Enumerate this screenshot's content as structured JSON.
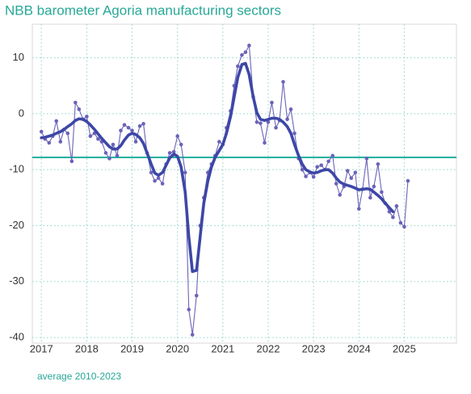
{
  "chart_data": {
    "type": "line",
    "title": "NBB barometer Agoria manufacturing sectors",
    "x": [
      2017,
      2017.08,
      2017.17,
      2017.25,
      2017.33,
      2017.42,
      2017.5,
      2017.58,
      2017.67,
      2017.75,
      2017.83,
      2017.92,
      2018,
      2018.08,
      2018.17,
      2018.25,
      2018.33,
      2018.42,
      2018.5,
      2018.58,
      2018.67,
      2018.75,
      2018.83,
      2018.92,
      2019,
      2019.08,
      2019.17,
      2019.25,
      2019.33,
      2019.42,
      2019.5,
      2019.58,
      2019.67,
      2019.75,
      2019.83,
      2019.92,
      2020,
      2020.08,
      2020.17,
      2020.25,
      2020.33,
      2020.42,
      2020.5,
      2020.58,
      2020.67,
      2020.75,
      2020.83,
      2020.92,
      2021,
      2021.08,
      2021.17,
      2021.25,
      2021.33,
      2021.42,
      2021.5,
      2021.58,
      2021.67,
      2021.75,
      2021.83,
      2021.92,
      2022,
      2022.08,
      2022.17,
      2022.25,
      2022.33,
      2022.42,
      2022.5,
      2022.58,
      2022.67,
      2022.75,
      2022.83,
      2022.92,
      2023,
      2023.08,
      2023.17,
      2023.25,
      2023.33,
      2023.42,
      2023.5,
      2023.58,
      2023.67,
      2023.75,
      2023.83,
      2023.92,
      2024,
      2024.08,
      2024.17,
      2024.25,
      2024.33,
      2024.42,
      2024.5,
      2024.58,
      2024.67,
      2024.75,
      2024.83,
      2024.92,
      2025,
      2025.08
    ],
    "series": [
      {
        "color": "#6b63b8",
        "style": "thin-with-markers",
        "values": [
          -3.2,
          -4.5,
          -5.2,
          -4.0,
          -1.3,
          -5.0,
          -2.8,
          -3.5,
          -8.5,
          2.0,
          0.8,
          -1.0,
          -0.5,
          -4.0,
          -3.5,
          -4.5,
          -5.0,
          -7.0,
          -8.0,
          -5.5,
          -7.5,
          -3.0,
          -2.0,
          -2.5,
          -3.0,
          -5.0,
          -2.2,
          -1.8,
          -7.0,
          -10.5,
          -12.0,
          -11.5,
          -12.5,
          -9.0,
          -7.0,
          -6.8,
          -4.0,
          -5.5,
          -10.5,
          -35.0,
          -39.5,
          -32.5,
          -20.0,
          -15.0,
          -10.5,
          -9.0,
          -7.5,
          -5.0,
          -5.5,
          -2.5,
          0.5,
          5.0,
          8.5,
          10.5,
          11.0,
          12.2,
          3.0,
          -1.5,
          -1.7,
          -5.2,
          -1.5,
          2.0,
          -2.5,
          -1.2,
          5.7,
          -1.0,
          0.8,
          -3.5,
          -8.0,
          -10.0,
          -11.2,
          -10.5,
          -11.3,
          -9.5,
          -9.2,
          -10.0,
          -8.5,
          -7.5,
          -12.5,
          -14.5,
          -13.0,
          -10.2,
          -11.5,
          -10.5,
          -17.0,
          -13.5,
          -8.0,
          -15.0,
          -13.0,
          -9.0,
          -14.0,
          -16.0,
          -17.5,
          -18.5,
          -16.5,
          -19.5,
          -20.2,
          -12.0
        ]
      },
      {
        "color": "#3d47a6",
        "style": "thick",
        "values": [
          -4.3,
          -4.2,
          -4.0,
          -3.8,
          -3.5,
          -3.2,
          -2.8,
          -2.3,
          -1.8,
          -1.2,
          -0.9,
          -1.0,
          -1.4,
          -2.0,
          -2.8,
          -3.6,
          -4.4,
          -5.2,
          -5.9,
          -6.3,
          -6.3,
          -5.7,
          -4.7,
          -3.8,
          -3.5,
          -3.7,
          -4.3,
          -5.3,
          -7.0,
          -9.0,
          -10.6,
          -11.0,
          -10.5,
          -9.2,
          -7.9,
          -7.2,
          -7.6,
          -9.5,
          -14.0,
          -22.0,
          -28.2,
          -28.0,
          -22.0,
          -16.0,
          -12.0,
          -9.5,
          -7.8,
          -6.6,
          -5.5,
          -3.5,
          -0.5,
          3.0,
          6.5,
          8.8,
          9.0,
          7.0,
          3.0,
          0.2,
          -1.0,
          -1.2,
          -1.0,
          -0.8,
          -0.8,
          -1.0,
          -1.5,
          -2.3,
          -3.5,
          -5.5,
          -7.5,
          -9.0,
          -10.0,
          -10.4,
          -10.6,
          -10.5,
          -10.2,
          -10.0,
          -10.0,
          -10.6,
          -11.5,
          -12.2,
          -12.6,
          -12.8,
          -13.0,
          -13.3,
          -13.6,
          -13.5,
          -13.4,
          -13.5,
          -14.0,
          -14.6,
          -15.2,
          -16.0,
          -16.8,
          -17.5,
          null,
          null,
          null,
          null
        ]
      }
    ],
    "reference_line": {
      "name": "average 2010-2023",
      "value": -7.8,
      "color": "#2bb3a0"
    },
    "xlim": [
      2016.8,
      2026.15
    ],
    "xticks": [
      2017,
      2018,
      2019,
      2020,
      2021,
      2022,
      2023,
      2024,
      2025
    ],
    "ylim": [
      -41,
      16
    ],
    "yticks": [
      -40,
      -30,
      -20,
      -10,
      0,
      10
    ],
    "grid": true
  }
}
